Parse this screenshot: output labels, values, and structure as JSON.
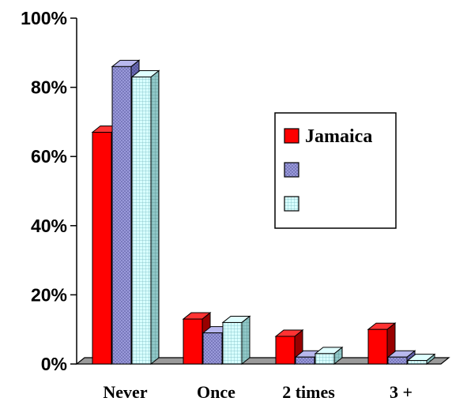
{
  "chart_data": {
    "type": "bar",
    "title": "",
    "xlabel": "",
    "ylabel": "",
    "categories": [
      "Never",
      "Once",
      "2 times",
      "3 +"
    ],
    "ylim": [
      0,
      100
    ],
    "yticks": [
      0,
      20,
      40,
      60,
      80,
      100
    ],
    "ytick_labels": [
      "0%",
      "20%",
      "40%",
      "60%",
      "80%",
      "100%"
    ],
    "grid": false,
    "legend_position": "right",
    "style": "3d",
    "series": [
      {
        "name": "Jamaica",
        "values": [
          67,
          13,
          8,
          10
        ],
        "color": "#ff0000",
        "pattern": "solid"
      },
      {
        "name": "",
        "values": [
          86,
          9,
          2,
          2
        ],
        "color": "#9999dd",
        "pattern": "crosshatch"
      },
      {
        "name": "",
        "values": [
          83,
          12,
          3,
          1
        ],
        "color": "#ccffff",
        "pattern": "grid"
      }
    ]
  }
}
